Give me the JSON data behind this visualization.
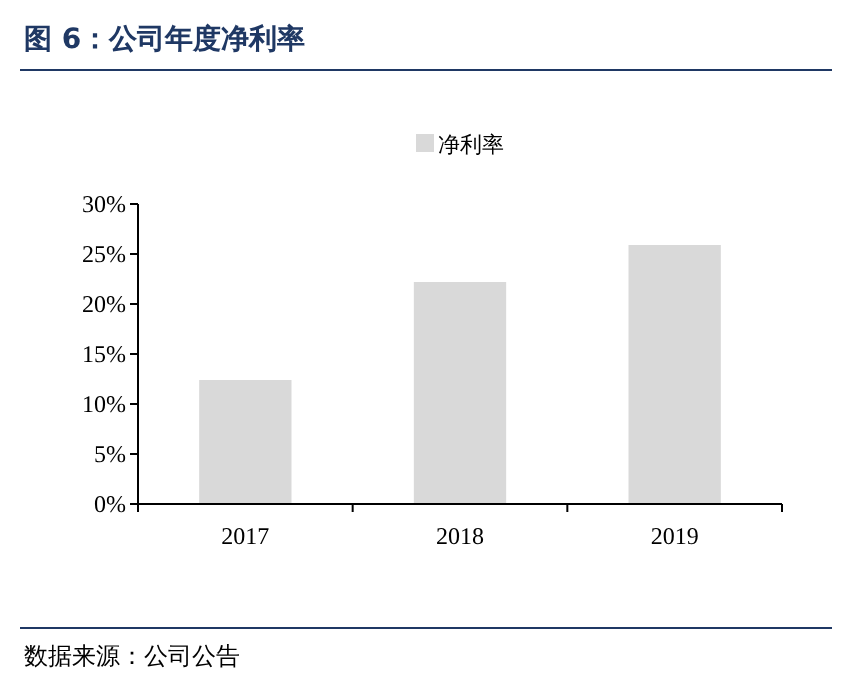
{
  "chart_data": {
    "type": "bar",
    "title": "图 6：公司年度净利率",
    "categories": [
      "2017",
      "2018",
      "2019"
    ],
    "series": [
      {
        "name": "净利率",
        "color": "#d9d9d9",
        "values": [
          12.4,
          22.2,
          25.9
        ]
      }
    ],
    "ylim": [
      0,
      30
    ],
    "yticks": [
      {
        "value": 0,
        "label": "0%"
      },
      {
        "value": 5,
        "label": "5%"
      },
      {
        "value": 10,
        "label": "10%"
      },
      {
        "value": 15,
        "label": "15%"
      },
      {
        "value": 20,
        "label": "20%"
      },
      {
        "value": 25,
        "label": "25%"
      },
      {
        "value": 30,
        "label": "30%"
      }
    ],
    "legend": "top",
    "grid": false,
    "annotations": [
      "数据来源：公司公告"
    ]
  }
}
